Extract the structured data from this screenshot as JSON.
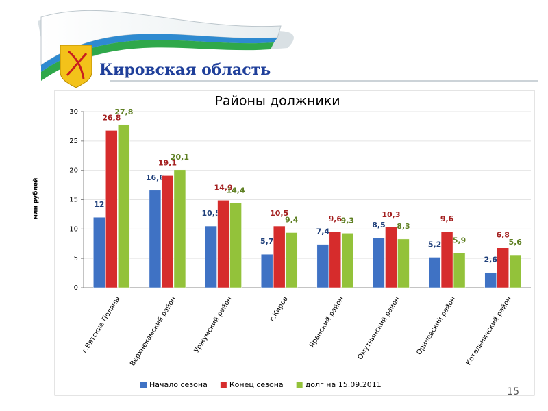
{
  "header": {
    "title": "Кировская область",
    "page": "15"
  },
  "chart_data": {
    "type": "bar",
    "title": "Районы должники",
    "y_label": "млн рублей",
    "categories": [
      "г.Вятские Поляны",
      "Верхнекамский район",
      "Уржумский район",
      "г.Киров",
      "Яранский район",
      "Омутнинский район",
      "Оричевский район",
      "Котельничский район"
    ],
    "series": [
      {
        "name": "Начало сезона",
        "color": "#3f72c4",
        "label_color": "#1f3f7a",
        "values": [
          12,
          16.6,
          10.5,
          5.7,
          7.4,
          8.5,
          5.2,
          2.6
        ],
        "value_labels": [
          "12",
          "16,6",
          "10,5",
          "5,7",
          "7,4",
          "8,5",
          "5,2",
          "2,6"
        ]
      },
      {
        "name": "Конец сезона",
        "color": "#d62c2c",
        "label_color": "#a31f1f",
        "values": [
          26.8,
          19.1,
          14.9,
          10.5,
          9.6,
          10.3,
          9.6,
          6.8
        ],
        "value_labels": [
          "26,8",
          "19,1",
          "14,9",
          "10,5",
          "9,6",
          "10,3",
          "9,6",
          "6,8"
        ]
      },
      {
        "name": "долг на 15.09.2011",
        "color": "#93c23a",
        "label_color": "#5e7f22",
        "values": [
          27.8,
          20.1,
          14.4,
          9.4,
          9.3,
          8.3,
          5.9,
          5.6
        ],
        "value_labels": [
          "27,8",
          "20,1",
          "14,4",
          "9,4",
          "9,3",
          "8,3",
          "5,9",
          "5,6"
        ]
      }
    ],
    "ylim": [
      0,
      30
    ],
    "yticks": [
      0,
      5,
      10,
      15,
      20,
      25,
      30
    ],
    "grid": true,
    "legend": "bottom"
  }
}
